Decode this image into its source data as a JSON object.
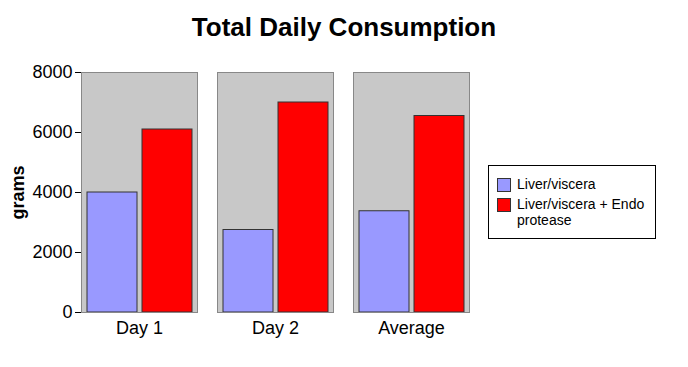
{
  "chart_data": {
    "type": "bar",
    "title": "Total Daily Consumption",
    "y_label": "grams",
    "categories": [
      "Day 1",
      "Day 2",
      "Average"
    ],
    "series": [
      {
        "name": "Liver/viscera",
        "color": "#9999ff",
        "values": [
          4000,
          2750,
          3375
        ]
      },
      {
        "name": "Liver/viscera + Endo protease",
        "color": "#ff0000",
        "values": [
          6100,
          7000,
          6550
        ]
      }
    ],
    "ylim": [
      0,
      8000
    ],
    "yticks": [
      0,
      2000,
      4000,
      6000,
      8000
    ],
    "grid": true,
    "legend": "right"
  }
}
